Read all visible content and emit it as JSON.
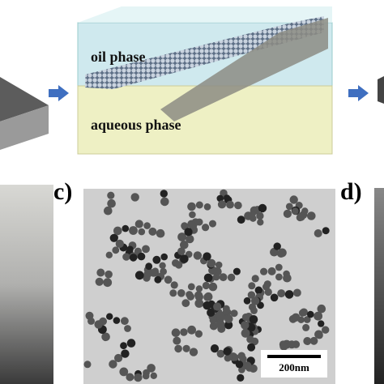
{
  "schematic": {
    "oil_label": "oil phase",
    "aqueous_label": "aqueous phase"
  },
  "panel_c": {
    "label": "c)",
    "scale_bar": "200nm"
  },
  "panel_d": {
    "label": "d)"
  }
}
